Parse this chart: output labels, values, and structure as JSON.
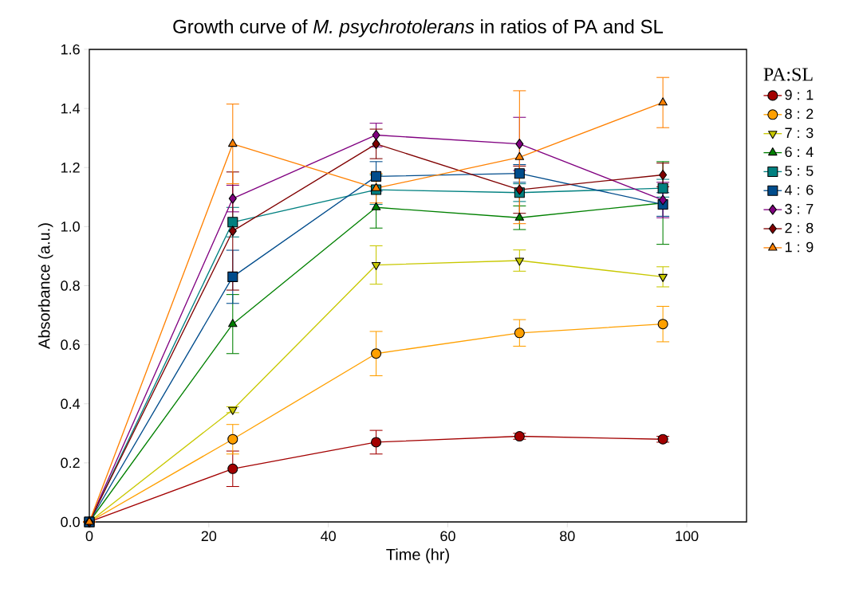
{
  "chart_data": {
    "type": "line",
    "title": "Growth curve of *M. psychrotolerans* in ratios of PA and SL",
    "xlabel": "Time (hr)",
    "ylabel": "Absorbance (a.u.)",
    "legend_title": "PA:SL",
    "legend": "right",
    "x": [
      0,
      24,
      48,
      72,
      96
    ],
    "xlim": [
      0,
      110
    ],
    "xticks": [
      0,
      20,
      40,
      60,
      80,
      100
    ],
    "ylim": [
      0,
      1.6
    ],
    "yticks": [
      {
        "value": 0,
        "label": "0.0"
      },
      0.2,
      0.4,
      0.6,
      0.8,
      {
        "value": 1,
        "label": "1.0"
      },
      1.2,
      1.4,
      1.6
    ],
    "series": [
      {
        "name": "9 : 1",
        "color": "#a30000",
        "marker": "circle",
        "values": [
          0,
          0.18,
          0.27,
          0.29,
          0.28
        ],
        "errors": [
          null,
          0.06,
          0.04,
          0.01,
          0.01
        ]
      },
      {
        "name": "8 : 2",
        "color": "#ffa000",
        "marker": "circle",
        "values": [
          0,
          0.28,
          0.57,
          0.64,
          0.67
        ],
        "errors": [
          null,
          0.05,
          0.075,
          0.045,
          0.06
        ]
      },
      {
        "name": "7 : 3",
        "color": "#c8c800",
        "marker": "triangle-down",
        "values": [
          0,
          0.38,
          0.87,
          0.885,
          0.83
        ],
        "errors": [
          null,
          0.01,
          0.065,
          0.036,
          0.034
        ]
      },
      {
        "name": "6 : 4",
        "color": "#008000",
        "marker": "triangle",
        "values": [
          0,
          0.67,
          1.065,
          1.03,
          1.08
        ],
        "errors": [
          null,
          0.1,
          0.07,
          0.04,
          0.14
        ]
      },
      {
        "name": "5 : 5",
        "color": "#008080",
        "marker": "square",
        "values": [
          0,
          1.015,
          1.125,
          1.115,
          1.13
        ],
        "errors": [
          null,
          0.05,
          0.05,
          0.03,
          0.03
        ]
      },
      {
        "name": "4 : 6",
        "color": "#004c8c",
        "marker": "square",
        "values": [
          0,
          0.83,
          1.17,
          1.18,
          1.075
        ],
        "errors": [
          null,
          0.09,
          0.05,
          0.03,
          0.04
        ]
      },
      {
        "name": "3 : 7",
        "color": "#800080",
        "marker": "diamond",
        "values": [
          0,
          1.095,
          1.31,
          1.28,
          1.09
        ],
        "errors": [
          null,
          0.045,
          0.04,
          0.09,
          0.06
        ]
      },
      {
        "name": "2 : 8",
        "color": "#800000",
        "marker": "diamond",
        "values": [
          0,
          0.985,
          1.28,
          1.125,
          1.175
        ],
        "errors": [
          null,
          0.2,
          0.05,
          0.08,
          0.04
        ]
      },
      {
        "name": "1 : 9",
        "color": "#ff8000",
        "marker": "triangle",
        "values": [
          0,
          1.28,
          1.13,
          1.235,
          1.42
        ],
        "errors": [
          null,
          0.135,
          0.05,
          0.225,
          0.085
        ]
      }
    ]
  }
}
